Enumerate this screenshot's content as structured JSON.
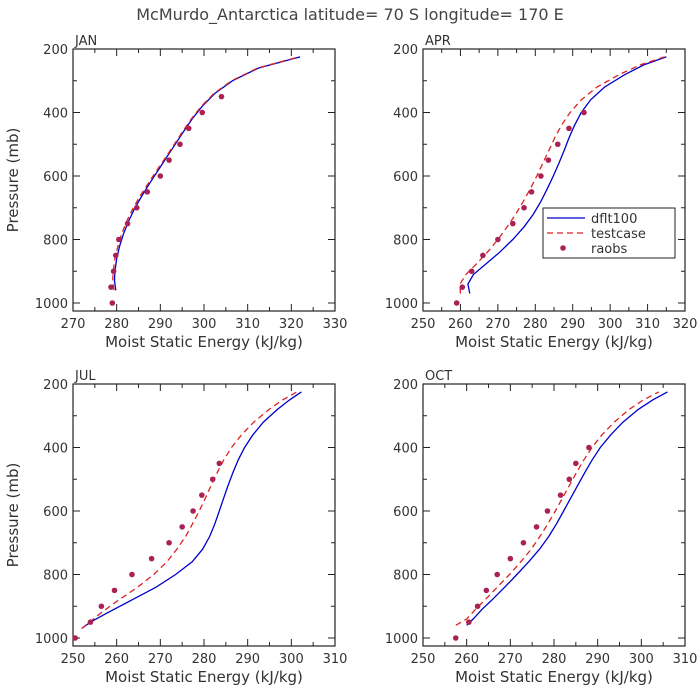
{
  "chart_data": {
    "title": "McMurdo_Antarctica  latitude= 70 S longitude= 170 E",
    "type": "line",
    "series_styles": [
      {
        "name": "dflt100",
        "color": "#0000cc",
        "dash": "none"
      },
      {
        "name": "testcase",
        "color": "#dd2222",
        "dash": "6,4"
      },
      {
        "name": "raobs",
        "color": "#aa2255",
        "marker": "dot"
      }
    ],
    "legend": {
      "entries": [
        "dflt100",
        "testcase",
        "raobs"
      ],
      "location": "panel APR, lower-right"
    },
    "panels": [
      {
        "label": "JAN",
        "xlabel": "Moist Static Energy (kJ/kg)",
        "ylabel": "Pressure (mb)",
        "xlim": [
          270,
          330
        ],
        "xticks": [
          270,
          280,
          290,
          300,
          310,
          320,
          330
        ],
        "ylim": [
          1000,
          200
        ],
        "yticks": [
          200,
          400,
          600,
          800,
          1000
        ],
        "series": [
          {
            "name": "dflt100",
            "p": [
              960,
              930,
              900,
              860,
              820,
              780,
              740,
              700,
              660,
              620,
              580,
              540,
              500,
              460,
              420,
              380,
              340,
              300,
              260,
              225
            ],
            "mse": [
              279.8,
              279.5,
              279.6,
              280.0,
              280.7,
              281.6,
              282.8,
              284.2,
              285.9,
              287.7,
              289.6,
              291.5,
              293.4,
              295.3,
              297.3,
              299.6,
              302.5,
              306.5,
              312.5,
              322.0
            ]
          },
          {
            "name": "testcase",
            "p": [
              960,
              930,
              900,
              860,
              820,
              780,
              740,
              700,
              660,
              620,
              580,
              540,
              500,
              460,
              420,
              380,
              340,
              300,
              260,
              225
            ],
            "mse": [
              279.4,
              279.1,
              279.2,
              279.6,
              280.3,
              281.2,
              282.4,
              283.8,
              285.5,
              287.4,
              289.3,
              291.3,
              293.2,
              295.1,
              297.1,
              299.4,
              302.3,
              306.3,
              312.3,
              321.7
            ]
          },
          {
            "name": "raobs",
            "p": [
              1000,
              950,
              900,
              850,
              800,
              750,
              700,
              650,
              600,
              550,
              500,
              450,
              400,
              350
            ],
            "mse": [
              279.0,
              278.7,
              279.3,
              279.8,
              280.5,
              282.5,
              284.6,
              287.0,
              290.0,
              292.0,
              294.5,
              296.5,
              299.6,
              304.0
            ]
          }
        ]
      },
      {
        "label": "APR",
        "xlabel": "Moist Static Energy (kJ/kg)",
        "ylabel": "",
        "xlim": [
          250,
          320
        ],
        "xticks": [
          250,
          260,
          270,
          280,
          290,
          300,
          310,
          320
        ],
        "ylim": [
          1000,
          200
        ],
        "yticks": [
          200,
          400,
          600,
          800,
          1000
        ],
        "show_legend": true,
        "series": [
          {
            "name": "dflt100",
            "p": [
              970,
              940,
              910,
              880,
              840,
              800,
              760,
              720,
              680,
              640,
              600,
              560,
              520,
              480,
              440,
              400,
              360,
              320,
              280,
              250,
              225
            ],
            "mse": [
              262.5,
              262.0,
              263.5,
              266.5,
              270.5,
              274.0,
              277.0,
              279.5,
              281.5,
              283.2,
              284.8,
              286.3,
              287.7,
              289.0,
              290.5,
              292.3,
              294.8,
              298.5,
              304.0,
              309.0,
              315.0
            ]
          },
          {
            "name": "testcase",
            "p": [
              970,
              940,
              910,
              880,
              840,
              800,
              760,
              720,
              680,
              640,
              600,
              560,
              520,
              480,
              440,
              400,
              360,
              320,
              280,
              250,
              225
            ],
            "mse": [
              260.0,
              259.9,
              261.5,
              264.0,
              267.2,
              270.0,
              272.5,
              274.8,
              276.8,
              278.7,
              280.4,
              282.0,
              283.6,
              285.2,
              287.0,
              289.3,
              292.3,
              296.5,
              302.5,
              308.0,
              314.5
            ]
          },
          {
            "name": "raobs",
            "p": [
              1000,
              950,
              900,
              850,
              800,
              750,
              700,
              650,
              600,
              550,
              500,
              450,
              400
            ],
            "mse": [
              259.0,
              260.5,
              263.0,
              266.0,
              270.0,
              274.0,
              277.0,
              279.0,
              281.5,
              283.5,
              286.0,
              289.0,
              293.0
            ]
          }
        ]
      },
      {
        "label": "JUL",
        "xlabel": "Moist Static Energy (kJ/kg)",
        "ylabel": "Pressure (mb)",
        "xlim": [
          250,
          310
        ],
        "xticks": [
          250,
          260,
          270,
          280,
          290,
          300,
          310
        ],
        "ylim": [
          1000,
          200
        ],
        "yticks": [
          200,
          400,
          600,
          800,
          1000
        ],
        "series": [
          {
            "name": "dflt100",
            "p": [
              970,
              950,
              920,
              880,
              840,
              800,
              760,
              720,
              680,
              640,
              600,
              560,
              520,
              480,
              440,
              400,
              360,
              320,
              280,
              250,
              225
            ],
            "mse": [
              252.0,
              254.0,
              258.0,
              263.5,
              269.0,
              273.5,
              277.3,
              279.7,
              281.3,
              282.5,
              283.5,
              284.5,
              285.5,
              286.6,
              287.8,
              289.3,
              291.2,
              293.6,
              296.8,
              299.6,
              302.3
            ]
          },
          {
            "name": "testcase",
            "p": [
              970,
              950,
              920,
              880,
              840,
              800,
              760,
              720,
              680,
              640,
              600,
              560,
              520,
              480,
              440,
              400,
              360,
              320,
              280,
              250,
              225
            ],
            "mse": [
              252.0,
              253.8,
              256.5,
              260.5,
              264.8,
              268.5,
              271.5,
              273.8,
              275.8,
              277.4,
              278.9,
              280.3,
              281.6,
              283.0,
              284.5,
              286.3,
              288.6,
              291.4,
              294.9,
              298.0,
              301.3
            ]
          },
          {
            "name": "raobs",
            "p": [
              1000,
              950,
              900,
              850,
              800,
              750,
              700,
              650,
              600,
              550,
              500,
              450
            ],
            "mse": [
              250.5,
              254.0,
              256.5,
              259.5,
              263.5,
              268.0,
              272.0,
              275.0,
              277.5,
              279.5,
              282.0,
              283.5
            ]
          }
        ]
      },
      {
        "label": "OCT",
        "xlabel": "Moist Static Energy (kJ/kg)",
        "ylabel": "",
        "xlim": [
          250,
          310
        ],
        "xticks": [
          250,
          260,
          270,
          280,
          290,
          300,
          310
        ],
        "ylim": [
          1000,
          200
        ],
        "yticks": [
          200,
          400,
          600,
          800,
          1000
        ],
        "series": [
          {
            "name": "dflt100",
            "p": [
              960,
              940,
              910,
              880,
              840,
              800,
              760,
              720,
              680,
              640,
              600,
              560,
              520,
              480,
              440,
              400,
              360,
              320,
              280,
              250,
              225
            ],
            "mse": [
              260.0,
              261.5,
              263.5,
              265.8,
              268.7,
              271.5,
              274.2,
              276.7,
              278.8,
              280.6,
              282.2,
              283.8,
              285.4,
              287.0,
              288.7,
              290.6,
              293.0,
              295.8,
              299.3,
              302.6,
              306.0
            ]
          },
          {
            "name": "testcase",
            "p": [
              960,
              940,
              910,
              880,
              840,
              800,
              760,
              720,
              680,
              640,
              600,
              560,
              520,
              480,
              440,
              400,
              360,
              320,
              280,
              250,
              225
            ],
            "mse": [
              257.5,
              260.0,
              262.0,
              264.2,
              267.0,
              269.8,
              272.4,
              274.8,
              276.8,
              278.6,
              280.3,
              281.9,
              283.5,
              285.1,
              286.8,
              288.7,
              291.0,
              293.8,
              297.2,
              300.5,
              304.0
            ]
          },
          {
            "name": "raobs",
            "p": [
              1000,
              950,
              900,
              850,
              800,
              750,
              700,
              650,
              600,
              550,
              500,
              450,
              400
            ],
            "mse": [
              257.5,
              260.5,
              262.5,
              264.5,
              267.0,
              270.0,
              273.0,
              276.0,
              278.5,
              281.5,
              283.5,
              285.0,
              288.0
            ]
          }
        ]
      }
    ]
  }
}
